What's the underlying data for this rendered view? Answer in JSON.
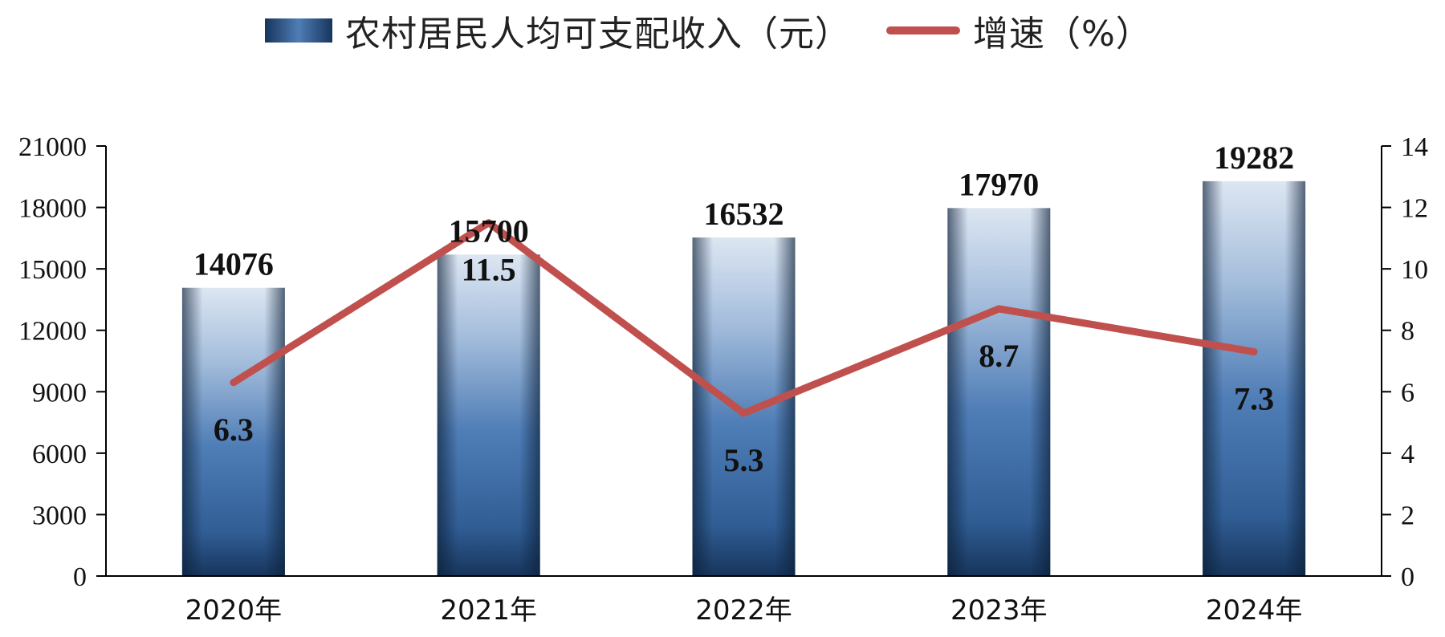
{
  "legend": {
    "bar_label": "农村居民人均可支配收入（元）",
    "line_label": "增速（%）"
  },
  "colors": {
    "bar_dark": "#17355c",
    "bar_mid": "#4f7db6",
    "bar_light": "#dde6f2",
    "line": "#c0504d",
    "axis": "#000000"
  },
  "chart_data": {
    "type": "bar",
    "categories": [
      "2020年",
      "2021年",
      "2022年",
      "2023年",
      "2024年"
    ],
    "series": [
      {
        "name": "农村居民人均可支配收入（元）",
        "type": "bar",
        "axis": "left",
        "values": [
          14076,
          15700,
          16532,
          17970,
          19282
        ]
      },
      {
        "name": "增速（%）",
        "type": "line",
        "axis": "right",
        "values": [
          6.3,
          11.5,
          5.3,
          8.7,
          7.3
        ]
      }
    ],
    "left_axis": {
      "min": 0,
      "max": 21000,
      "step": 3000,
      "ticks": [
        "0",
        "3000",
        "6000",
        "9000",
        "12000",
        "15000",
        "18000",
        "21000"
      ]
    },
    "right_axis": {
      "min": 0,
      "max": 14,
      "step": 2,
      "ticks": [
        "0",
        "2",
        "4",
        "6",
        "8",
        "10",
        "12",
        "14"
      ]
    },
    "legend_position": "top",
    "grid": false
  }
}
